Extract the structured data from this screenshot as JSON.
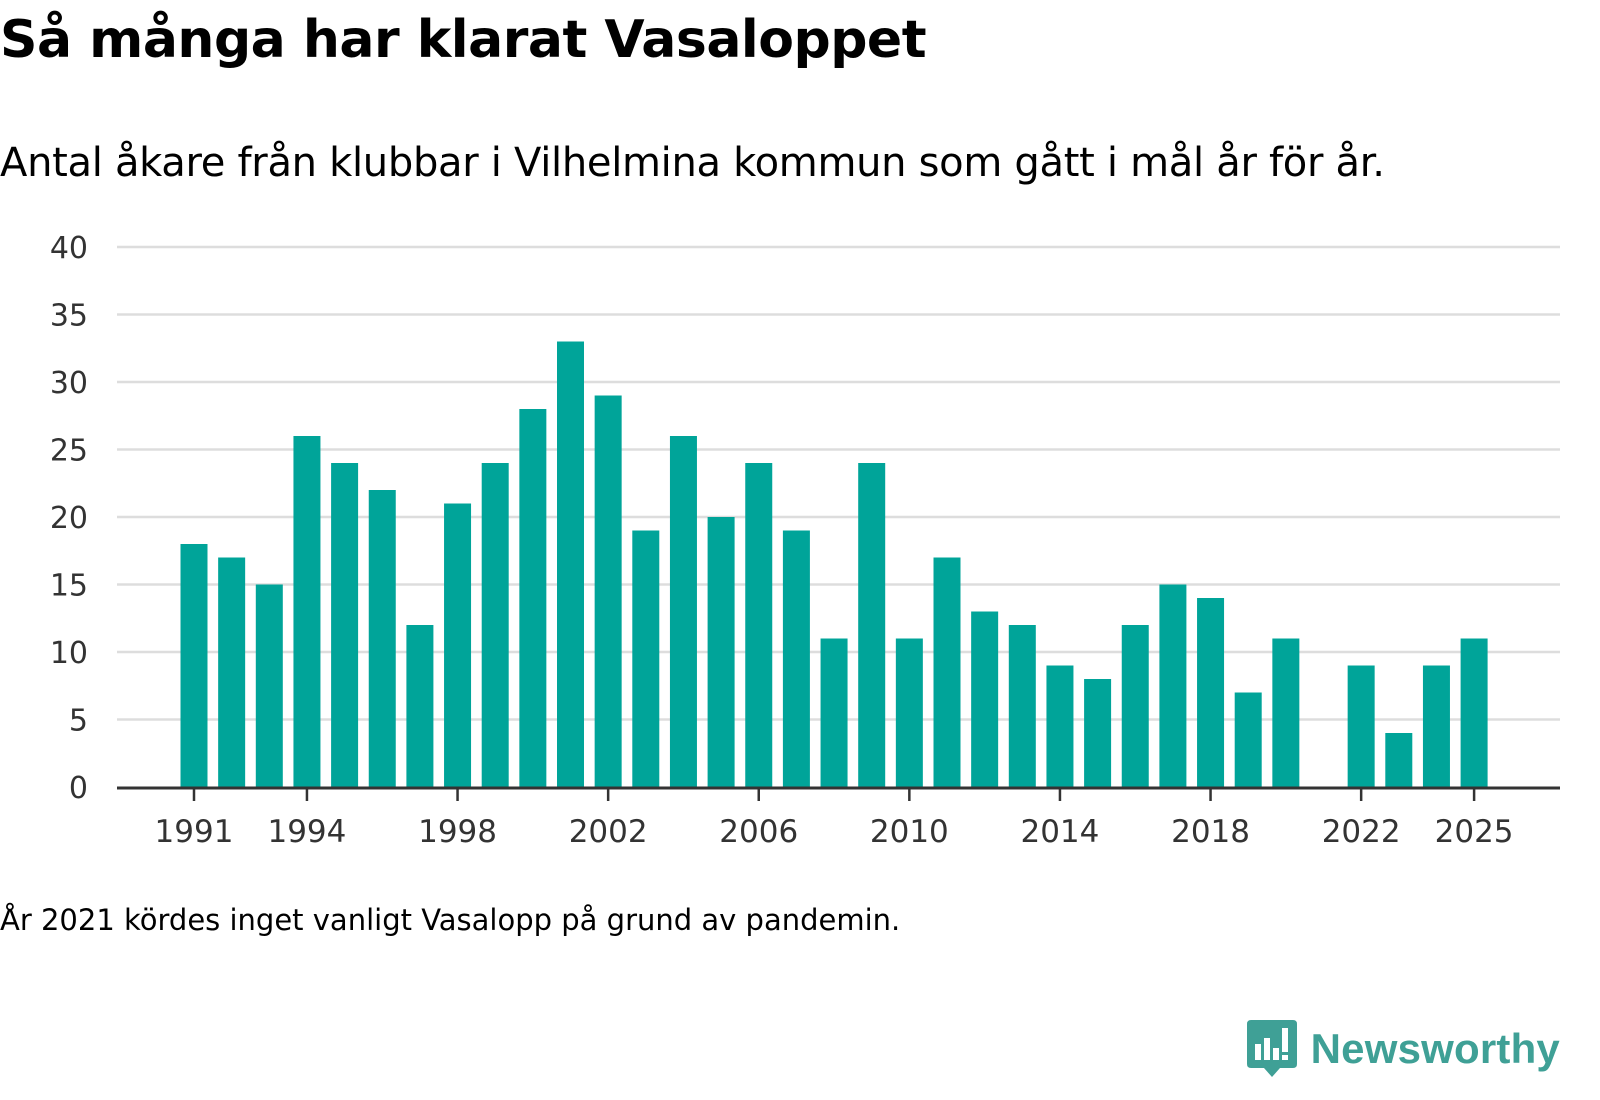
{
  "header": {
    "title": "Så många har klarat Vasaloppet",
    "subtitle": "Antal åkare från klubbar i Vilhelmina kommun som gått i mål år för år."
  },
  "footnote": "År 2021 kördes inget vanligt Vasalopp på grund av pandemin.",
  "brand": {
    "name": "Newsworthy",
    "icon": "newsworthy-logo-icon",
    "color": "#3fa096"
  },
  "colors": {
    "bar": "#00a499",
    "grid": "#dddddd",
    "axis": "#333333"
  },
  "chart_data": {
    "type": "bar",
    "title": "Så många har klarat Vasaloppet",
    "subtitle": "Antal åkare från klubbar i Vilhelmina kommun som gått i mål år för år.",
    "xlabel": "",
    "ylabel": "",
    "ylim": [
      0,
      40
    ],
    "yticks": [
      0,
      5,
      10,
      15,
      20,
      25,
      30,
      35,
      40
    ],
    "xticks": [
      1991,
      1994,
      1998,
      2002,
      2006,
      2010,
      2014,
      2018,
      2022,
      2025
    ],
    "grid": true,
    "categories": [
      1991,
      1992,
      1993,
      1994,
      1995,
      1996,
      1997,
      1998,
      1999,
      2000,
      2001,
      2002,
      2003,
      2004,
      2005,
      2006,
      2007,
      2008,
      2009,
      2010,
      2011,
      2012,
      2013,
      2014,
      2015,
      2016,
      2017,
      2018,
      2019,
      2020,
      2021,
      2022,
      2023,
      2024,
      2025
    ],
    "values": [
      18,
      17,
      15,
      26,
      24,
      22,
      12,
      21,
      24,
      28,
      33,
      29,
      19,
      26,
      20,
      24,
      19,
      11,
      24,
      11,
      17,
      13,
      12,
      9,
      8,
      12,
      15,
      14,
      7,
      11,
      null,
      9,
      4,
      9,
      11
    ]
  }
}
